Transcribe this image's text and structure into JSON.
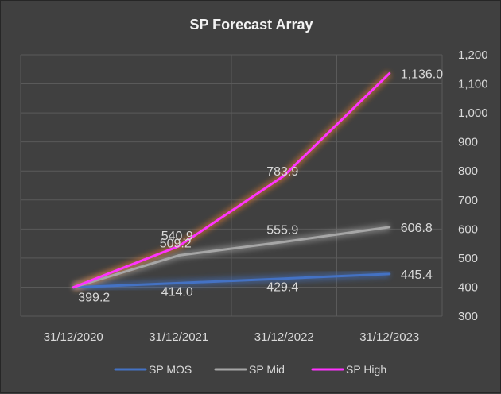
{
  "chart_data": {
    "type": "line",
    "title": "SP Forecast Array",
    "categories": [
      "31/12/2020",
      "31/12/2021",
      "31/12/2022",
      "31/12/2023"
    ],
    "series": [
      {
        "name": "SP MOS",
        "values": [
          399.2,
          414.0,
          429.4,
          445.4
        ],
        "labels": [
          "399.2",
          "414.0",
          "429.4",
          "445.4"
        ],
        "color": "#4472c4",
        "glow": "#4472c4"
      },
      {
        "name": "SP Mid",
        "values": [
          399.2,
          509.2,
          555.9,
          606.8
        ],
        "labels": [
          "",
          "509.2",
          "555.9",
          "606.8"
        ],
        "color": "#a6a6a6",
        "glow": "#a6a6a6"
      },
      {
        "name": "SP High",
        "values": [
          399.2,
          540.9,
          783.9,
          1136.0
        ],
        "labels": [
          "",
          "540.9",
          "783.9",
          "1,136.0"
        ],
        "color": "#ff33ff",
        "glow": "#ed7d31"
      }
    ],
    "yaxis": {
      "position": "right",
      "min": 300,
      "max": 1200,
      "ticks": [
        300,
        400,
        500,
        600,
        700,
        800,
        900,
        1000,
        1100,
        1200
      ],
      "tick_labels": [
        "300",
        "400",
        "500",
        "600",
        "700",
        "800",
        "900",
        "1,000",
        "1,100",
        "1,200"
      ]
    },
    "grid": true,
    "legend": "bottom"
  }
}
